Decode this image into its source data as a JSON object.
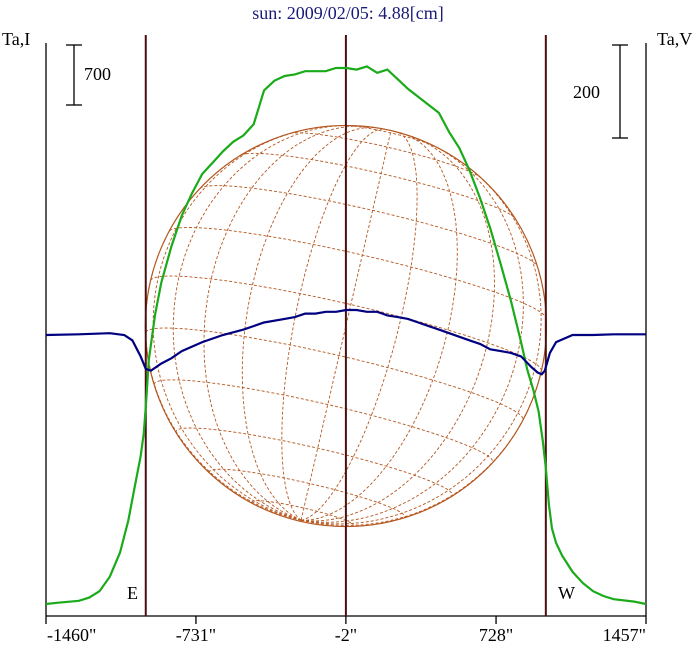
{
  "chart_data": {
    "type": "line",
    "title": "sun: 2009/02/05: 4.88[cm]",
    "y_left_label": "Ta,I",
    "y_right_label": "Ta,V",
    "scale_bar_left": "700",
    "scale_bar_right": "200",
    "limb_labels": [
      "E",
      "W"
    ],
    "x_ticks": [
      {
        "value": -1460,
        "label": "-1460\""
      },
      {
        "value": -731,
        "label": "-731\""
      },
      {
        "value": -2,
        "label": "-2\""
      },
      {
        "value": 728,
        "label": "728\""
      },
      {
        "value": 1457,
        "label": "1457\""
      }
    ],
    "xlim": [
      -1460,
      1457
    ],
    "limb_lines_arcsec": [
      -975,
      -2,
      970
    ],
    "disk_center_arcsec": -2,
    "disk_radius_arcsec": 975,
    "grid": true,
    "series": [
      {
        "color": "#1aaa1a",
        "x": [
          -1460,
          -1400,
          -1300,
          -1250,
          -1200,
          -1150,
          -1100,
          -1060,
          -1030,
          -1000,
          -985,
          -975,
          -960,
          -930,
          -900,
          -850,
          -800,
          -750,
          -700,
          -650,
          -600,
          -550,
          -500,
          -450,
          -400,
          -350,
          -300,
          -250,
          -200,
          -150,
          -100,
          -50,
          0,
          50,
          100,
          150,
          200,
          250,
          300,
          350,
          400,
          450,
          500,
          550,
          600,
          650,
          700,
          750,
          800,
          850,
          880,
          910,
          935,
          955,
          970,
          985,
          1000,
          1020,
          1050,
          1100,
          1150,
          1200,
          1250,
          1300,
          1400,
          1457
        ],
        "y": [
          0,
          8,
          20,
          40,
          80,
          170,
          320,
          520,
          720,
          920,
          1060,
          1230,
          1520,
          1800,
          2000,
          2230,
          2420,
          2560,
          2680,
          2750,
          2820,
          2880,
          2920,
          2990,
          3200,
          3260,
          3290,
          3300,
          3320,
          3320,
          3320,
          3340,
          3340,
          3330,
          3350,
          3310,
          3330,
          3270,
          3210,
          3160,
          3110,
          3060,
          2940,
          2840,
          2700,
          2530,
          2340,
          2120,
          1890,
          1630,
          1460,
          1330,
          1200,
          1020,
          850,
          620,
          470,
          380,
          300,
          200,
          130,
          80,
          50,
          30,
          15,
          0
        ]
      },
      {
        "color": "#000080",
        "x": [
          -1460,
          -1300,
          -1150,
          -1080,
          -1040,
          -1000,
          -975,
          -950,
          -900,
          -850,
          -800,
          -700,
          -600,
          -500,
          -400,
          -300,
          -250,
          -200,
          -150,
          -100,
          -50,
          0,
          50,
          100,
          150,
          200,
          250,
          300,
          350,
          400,
          450,
          500,
          550,
          600,
          650,
          700,
          750,
          800,
          850,
          900,
          930,
          950,
          965,
          990,
          1020,
          1100,
          1200,
          1300,
          1457
        ],
        "y": [
          0,
          2,
          5,
          0,
          -15,
          -60,
          -95,
          -100,
          -80,
          -65,
          -45,
          -20,
          0,
          15,
          35,
          45,
          50,
          60,
          60,
          65,
          65,
          70,
          70,
          65,
          65,
          55,
          50,
          45,
          35,
          25,
          15,
          5,
          -5,
          -15,
          -25,
          -40,
          -45,
          -50,
          -60,
          -90,
          -105,
          -110,
          -100,
          -50,
          -20,
          0,
          0,
          2,
          2
        ]
      }
    ]
  }
}
